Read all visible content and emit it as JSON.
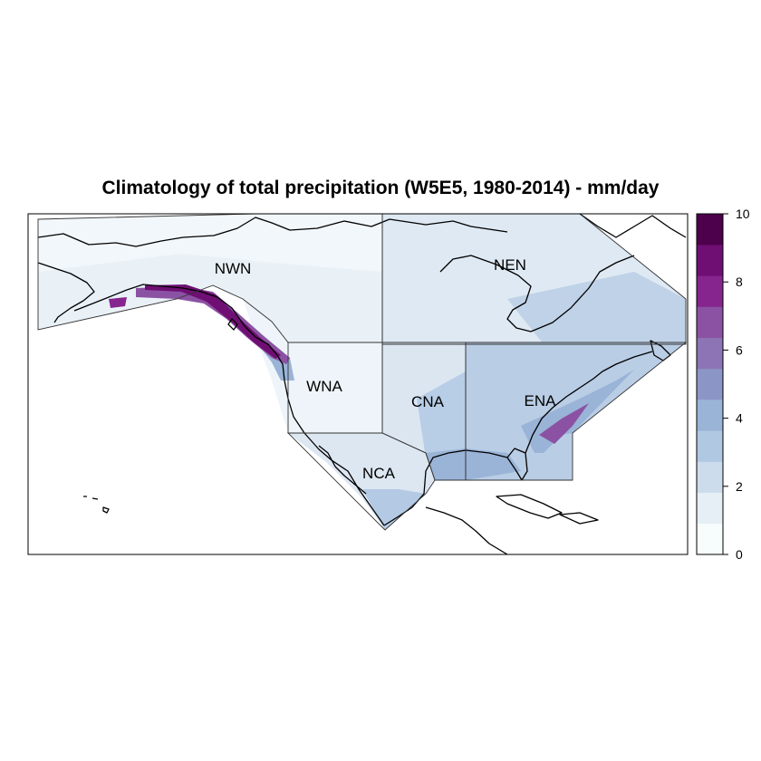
{
  "title": "Climatology of total precipitation (W5E5, 1980-2014) - mm/day",
  "regions": [
    {
      "id": "NWN",
      "label": "NWN"
    },
    {
      "id": "NEN",
      "label": "NEN"
    },
    {
      "id": "WNA",
      "label": "WNA"
    },
    {
      "id": "CNA",
      "label": "CNA"
    },
    {
      "id": "ENA",
      "label": "ENA"
    },
    {
      "id": "NCA",
      "label": "NCA"
    }
  ],
  "legend": {
    "min": 0,
    "max": 10,
    "tick_labels": [
      "0",
      "2",
      "4",
      "6",
      "8",
      "10"
    ],
    "colors": [
      "#f7fcfd",
      "#e6eff6",
      "#ccdcec",
      "#b1c8e2",
      "#9ab4d7",
      "#8c96c6",
      "#8c74b5",
      "#8b52a3",
      "#87258e",
      "#6f0f73",
      "#4d004b"
    ]
  }
}
